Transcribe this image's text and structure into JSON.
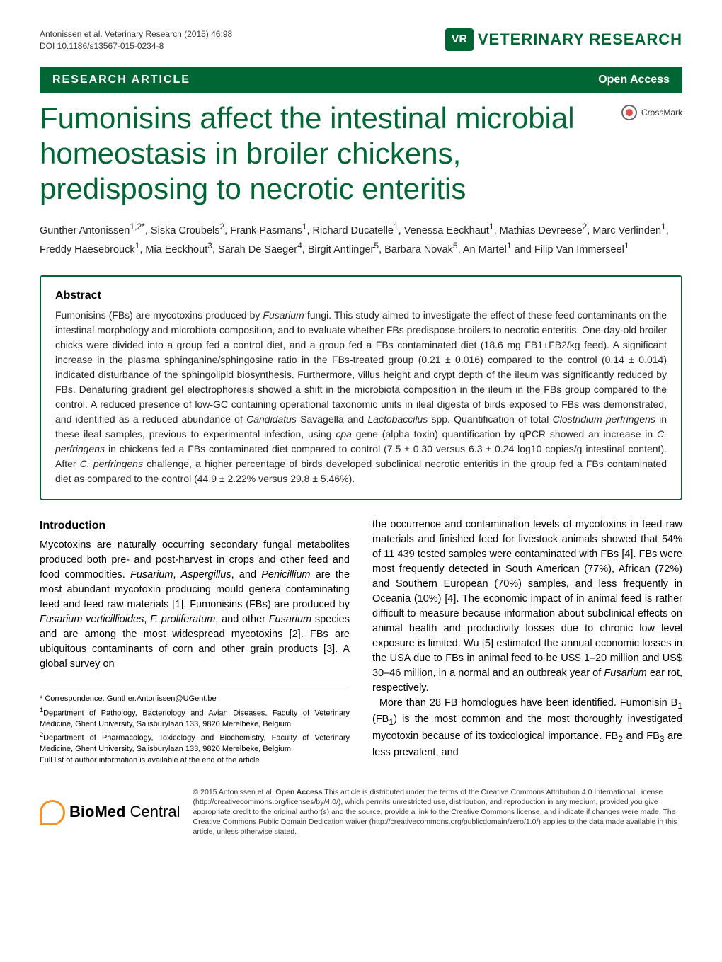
{
  "header": {
    "citation": "Antonissen et al. Veterinary Research (2015) 46:98",
    "doi": "DOI 10.1186/s13567-015-0234-8",
    "journal_logo_letters": "VR",
    "journal_name": "VETERINARY RESEARCH"
  },
  "banner": {
    "left": "RESEARCH ARTICLE",
    "right": "Open Access"
  },
  "title": "Fumonisins affect the intestinal microbial homeostasis in broiler chickens, predisposing to necrotic enteritis",
  "crossmark": "CrossMark",
  "authors_html": "Gunther Antonissen<sup>1,2*</sup>, Siska Croubels<sup>2</sup>, Frank Pasmans<sup>1</sup>, Richard Ducatelle<sup>1</sup>, Venessa Eeckhaut<sup>1</sup>, Mathias Devreese<sup>2</sup>, Marc Verlinden<sup>1</sup>, Freddy Haesebrouck<sup>1</sup>, Mia Eeckhout<sup>3</sup>, Sarah De Saeger<sup>4</sup>, Birgit Antlinger<sup>5</sup>, Barbara Novak<sup>5</sup>, An Martel<sup>1</sup> and Filip Van Immerseel<sup>1</sup>",
  "abstract": {
    "heading": "Abstract",
    "body_html": "Fumonisins (FBs) are mycotoxins produced by <span class=\"ital\">Fusarium</span> fungi. This study aimed to investigate the effect of these feed contaminants on the intestinal morphology and microbiota composition, and to evaluate whether FBs predispose broilers to necrotic enteritis. One-day-old broiler chicks were divided into a group fed a control diet, and a group fed a FBs contaminated diet (18.6 mg FB1+FB2/kg feed). A significant increase in the plasma sphinganine/sphingosine ratio in the FBs-treated group (0.21 ± 0.016) compared to the control (0.14 ± 0.014) indicated disturbance of the sphingolipid biosynthesis. Furthermore, villus height and crypt depth of the ileum was significantly reduced by FBs. Denaturing gradient gel electrophoresis showed a shift in the microbiota composition in the ileum in the FBs group compared to the control. A reduced presence of low-GC containing operational taxonomic units in ileal digesta of birds exposed to FBs was demonstrated, and identified as a reduced abundance of <span class=\"ital\">Candidatus</span> Savagella and <span class=\"ital\">Lactobaccilus</span> spp. Quantification of total <span class=\"ital\">Clostridium perfringens</span> in these ileal samples, previous to experimental infection, using <span class=\"ital\">cpa</span> gene (alpha toxin) quantification by qPCR showed an increase in <span class=\"ital\">C. perfringens</span> in chickens fed a FBs contaminated diet compared to control (7.5 ± 0.30 versus 6.3 ± 0.24 log10 copies/g intestinal content). After <span class=\"ital\">C. perfringens</span> challenge, a higher percentage of birds developed subclinical necrotic enteritis in the group fed a FBs contaminated diet as compared to the control (44.9 ± 2.22% versus 29.8 ± 5.46%)."
  },
  "intro": {
    "heading": "Introduction",
    "left_html": "Mycotoxins are naturally occurring secondary fungal metabolites produced both pre- and post-harvest in crops and other feed and food commodities. <span class=\"ital\">Fusarium</span>, <span class=\"ital\">Aspergillus</span>, and <span class=\"ital\">Penicillium</span> are the most abundant mycotoxin producing mould genera contaminating feed and feed raw materials [1]. Fumonisins (FBs) are produced by <span class=\"ital\">Fusarium verticillioides</span>, <span class=\"ital\">F. proliferatum</span>, and other <span class=\"ital\">Fusarium</span> species and are among the most widespread mycotoxins [2]. FBs are ubiquitous contaminants of corn and other grain products [3]. A global survey on",
    "right_html": "the occurrence and contamination levels of mycotoxins in feed raw materials and finished feed for livestock animals showed that 54% of 11 439 tested samples were contaminated with FBs [4]. FBs were most frequently detected in South American (77%), African (72%) and Southern European (70%) samples, and less frequently in Oceania (10%) [4]. The economic impact of in animal feed is rather difficult to measure because information about subclinical effects on animal health and productivity losses due to chronic low level exposure is limited. Wu [5] estimated the annual economic losses in the USA due to FBs in animal feed to be US$ 1–20 million and US$ 30–46 million, in a normal and an outbreak year of <span class=\"ital\">Fusarium</span> ear rot, respectively.<br>&nbsp;&nbsp;More than 28 FB homologues have been identified. Fumonisin B<sub>1</sub> (FB<sub>1</sub>) is the most common and the most thoroughly investigated mycotoxin because of its toxicological importance. FB<sub>2</sub> and FB<sub>3</sub> are less prevalent, and"
  },
  "correspondence": {
    "line1": "* Correspondence: Gunther.Antonissen@UGent.be",
    "line2": "<sup>1</sup>Department of Pathology, Bacteriology and Avian Diseases, Faculty of Veterinary Medicine, Ghent University, Salisburylaan 133, 9820 Merelbeke, Belgium",
    "line3": "<sup>2</sup>Department of Pharmacology, Toxicology and Biochemistry, Faculty of Veterinary Medicine, Ghent University, Salisburylaan 133, 9820 Merelbeke, Belgium",
    "line4": "Full list of author information is available at the end of the article"
  },
  "bmc": {
    "logo_bold": "BioMed",
    "logo_light": " Central",
    "license": "© 2015 Antonissen et al. <b>Open Access</b> This article is distributed under the terms of the Creative Commons Attribution 4.0 International License (http://creativecommons.org/licenses/by/4.0/), which permits unrestricted use, distribution, and reproduction in any medium, provided you give appropriate credit to the original author(s) and the source, provide a link to the Creative Commons license, and indicate if changes were made. The Creative Commons Public Domain Dedication waiver (http://creativecommons.org/publicdomain/zero/1.0/) applies to the data made available in this article, unless otherwise stated."
  },
  "colors": {
    "brand_green": "#006633",
    "text": "#000000",
    "orange": "#f7931e"
  }
}
